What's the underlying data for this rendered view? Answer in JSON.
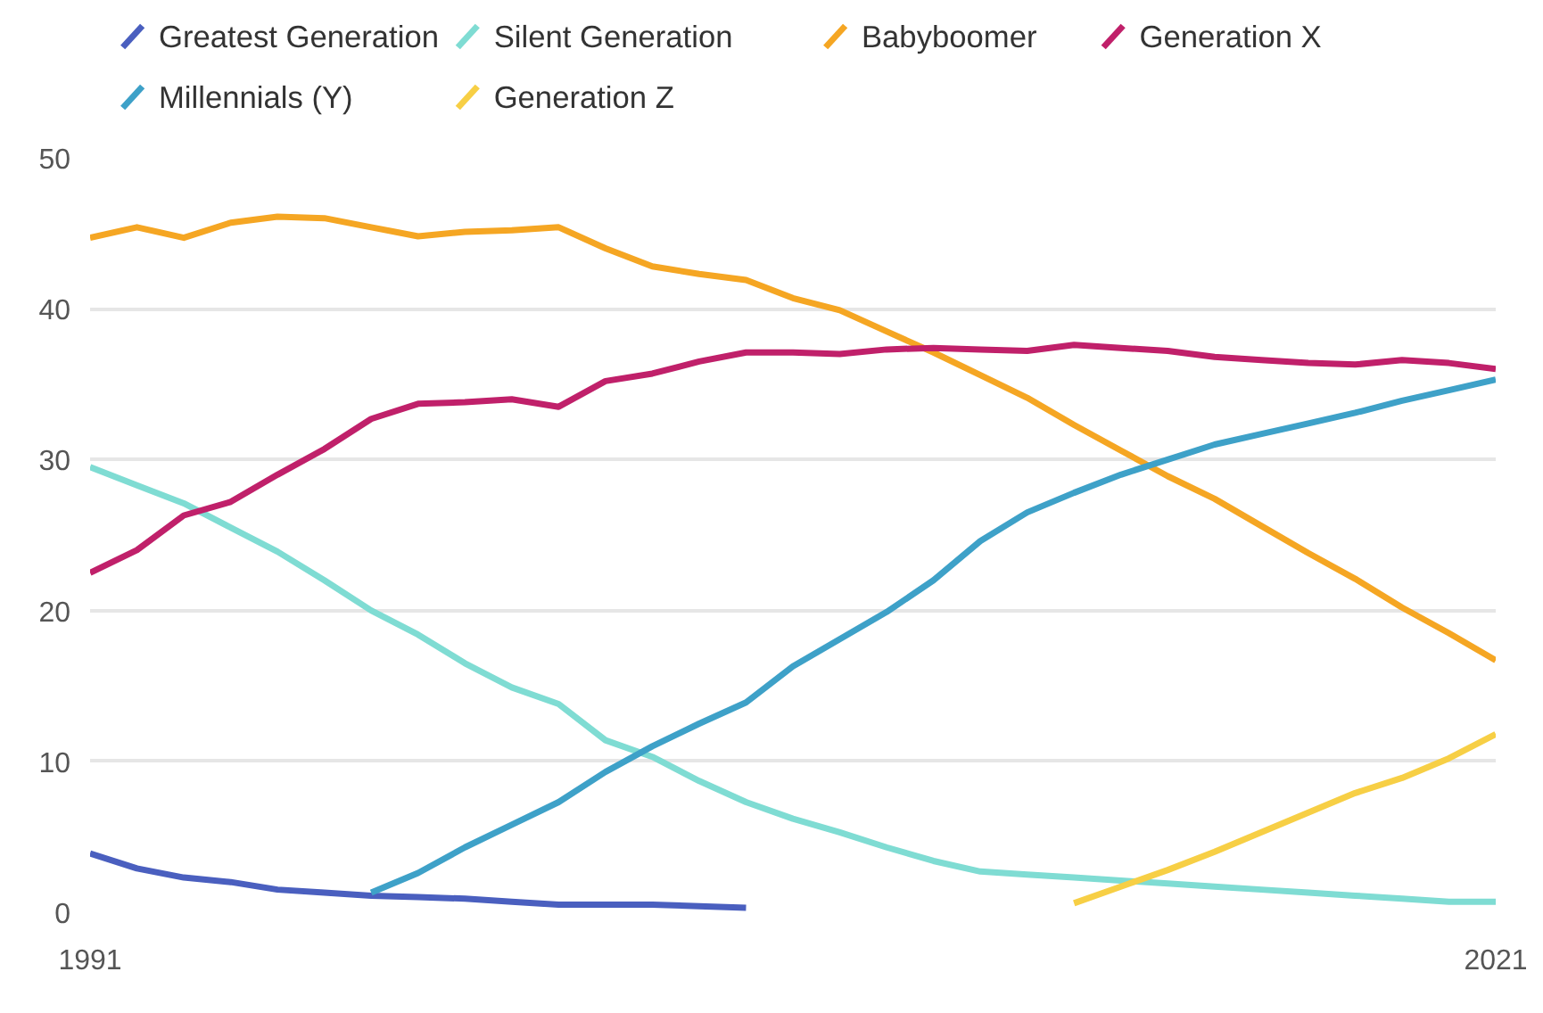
{
  "chart_data": {
    "type": "line",
    "xlim": [
      1991,
      2021
    ],
    "xticks": [
      1991,
      2021
    ],
    "ylim": [
      0,
      50
    ],
    "yticks": [
      0,
      10,
      20,
      30,
      40,
      50
    ],
    "grid": "y",
    "legend": "top",
    "marker": "none",
    "line_style": "solid",
    "series": [
      {
        "name": "Greatest Generation",
        "color": "#4a5fbf",
        "x": [
          1991,
          1992,
          1993,
          1994,
          1995,
          1996,
          1997,
          1998,
          1999,
          2000,
          2001,
          2002,
          2003,
          2004,
          2005
        ],
        "values": [
          3.9,
          2.9,
          2.3,
          2.0,
          1.5,
          1.3,
          1.1,
          1.0,
          0.9,
          0.7,
          0.5,
          0.5,
          0.5,
          0.4,
          0.3
        ]
      },
      {
        "name": "Silent Generation",
        "color": "#7fdcd3",
        "x": [
          1991,
          1992,
          1993,
          1994,
          1995,
          1996,
          1997,
          1998,
          1999,
          2000,
          2001,
          2002,
          2003,
          2004,
          2005,
          2006,
          2007,
          2008,
          2009,
          2010,
          2011,
          2012,
          2013,
          2014,
          2015,
          2016,
          2017,
          2018,
          2019,
          2020,
          2021
        ],
        "values": [
          29.5,
          28.3,
          27.1,
          25.5,
          23.9,
          22.0,
          20.0,
          18.4,
          16.5,
          14.9,
          13.8,
          11.4,
          10.3,
          8.7,
          7.3,
          6.2,
          5.3,
          4.3,
          3.4,
          2.7,
          2.5,
          2.3,
          2.1,
          1.9,
          1.7,
          1.5,
          1.3,
          1.1,
          0.9,
          0.7,
          0.7
        ]
      },
      {
        "name": "Babyboomer",
        "color": "#f5a623",
        "x": [
          1991,
          1992,
          1993,
          1994,
          1995,
          1996,
          1997,
          1998,
          1999,
          2000,
          2001,
          2002,
          2003,
          2004,
          2005,
          2006,
          2007,
          2008,
          2009,
          2010,
          2011,
          2012,
          2013,
          2014,
          2015,
          2016,
          2017,
          2018,
          2019,
          2020,
          2021
        ],
        "values": [
          44.7,
          45.4,
          44.7,
          45.7,
          46.1,
          46.0,
          45.4,
          44.8,
          45.1,
          45.2,
          45.4,
          44.0,
          42.8,
          42.3,
          41.9,
          40.7,
          39.9,
          38.5,
          37.1,
          35.6,
          34.1,
          32.3,
          30.6,
          28.9,
          27.4,
          25.6,
          23.8,
          22.1,
          20.2,
          18.5,
          16.7
        ]
      },
      {
        "name": "Generation X",
        "color": "#c0206a",
        "x": [
          1991,
          1992,
          1993,
          1994,
          1995,
          1996,
          1997,
          1998,
          1999,
          2000,
          2001,
          2002,
          2003,
          2004,
          2005,
          2006,
          2007,
          2008,
          2009,
          2010,
          2011,
          2012,
          2013,
          2014,
          2015,
          2016,
          2017,
          2018,
          2019,
          2020,
          2021
        ],
        "values": [
          22.5,
          24.0,
          26.3,
          27.2,
          29.0,
          30.7,
          32.7,
          33.7,
          33.8,
          34.0,
          33.5,
          35.2,
          35.7,
          36.5,
          37.1,
          37.1,
          37.0,
          37.3,
          37.4,
          37.3,
          37.2,
          37.6,
          37.4,
          37.2,
          36.8,
          36.6,
          36.4,
          36.3,
          36.6,
          36.4,
          36.0
        ]
      },
      {
        "name": "Millennials (Y)",
        "color": "#3ea1c8",
        "x": [
          1997,
          1998,
          1999,
          2000,
          2001,
          2002,
          2003,
          2004,
          2005,
          2006,
          2007,
          2008,
          2009,
          2010,
          2011,
          2012,
          2013,
          2014,
          2015,
          2016,
          2017,
          2018,
          2019,
          2020,
          2021
        ],
        "values": [
          1.3,
          2.6,
          4.3,
          5.8,
          7.3,
          9.3,
          11.0,
          12.5,
          13.9,
          16.3,
          18.1,
          19.9,
          22.0,
          24.6,
          26.5,
          27.8,
          29.0,
          30.0,
          31.0,
          31.7,
          32.4,
          33.1,
          33.9,
          34.6,
          35.3
        ]
      },
      {
        "name": "Generation Z",
        "color": "#f7cf45",
        "x": [
          2012,
          2013,
          2014,
          2015,
          2016,
          2017,
          2018,
          2019,
          2020,
          2021
        ],
        "values": [
          0.6,
          1.7,
          2.8,
          4.0,
          5.3,
          6.6,
          7.9,
          8.9,
          10.2,
          11.8
        ]
      }
    ]
  }
}
